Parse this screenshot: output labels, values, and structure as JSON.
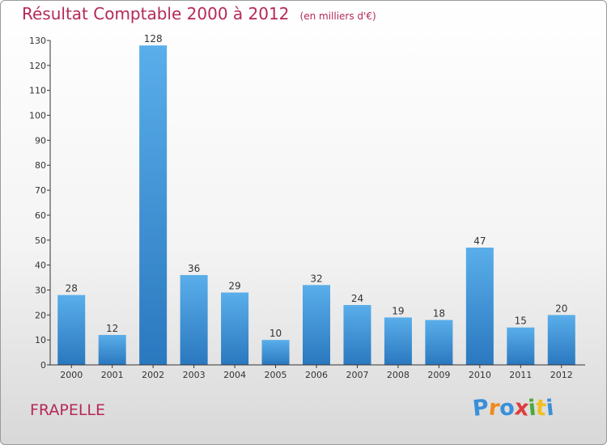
{
  "chart_data": {
    "type": "bar",
    "title": "Résultat Comptable 2000 à 2012",
    "unit_note": "(en milliers d'€)",
    "categories": [
      "2000",
      "2001",
      "2002",
      "2003",
      "2004",
      "2005",
      "2006",
      "2007",
      "2008",
      "2009",
      "2010",
      "2011",
      "2012"
    ],
    "values": [
      28,
      12,
      128,
      36,
      29,
      10,
      32,
      24,
      19,
      18,
      47,
      15,
      20
    ],
    "ylim": [
      0,
      130
    ],
    "yticks": [
      0,
      10,
      20,
      30,
      40,
      50,
      60,
      70,
      80,
      90,
      100,
      110,
      120,
      130
    ],
    "xlabel": "",
    "ylabel": "",
    "grid": false
  },
  "commune": "FRAPELLE",
  "logo": {
    "letters": [
      "P",
      "r",
      "o",
      "x",
      "i",
      "t",
      "i"
    ],
    "colors": [
      "#3a8fd8",
      "#f08a1c",
      "#3a8fd8",
      "#e03c3c",
      "#4aaa3a",
      "#f0c020",
      "#3a8fd8"
    ]
  },
  "colors": {
    "bar_top": "#5aaeea",
    "bar_bottom": "#2a78bf",
    "text": "#b5285a",
    "axis": "#333333"
  }
}
